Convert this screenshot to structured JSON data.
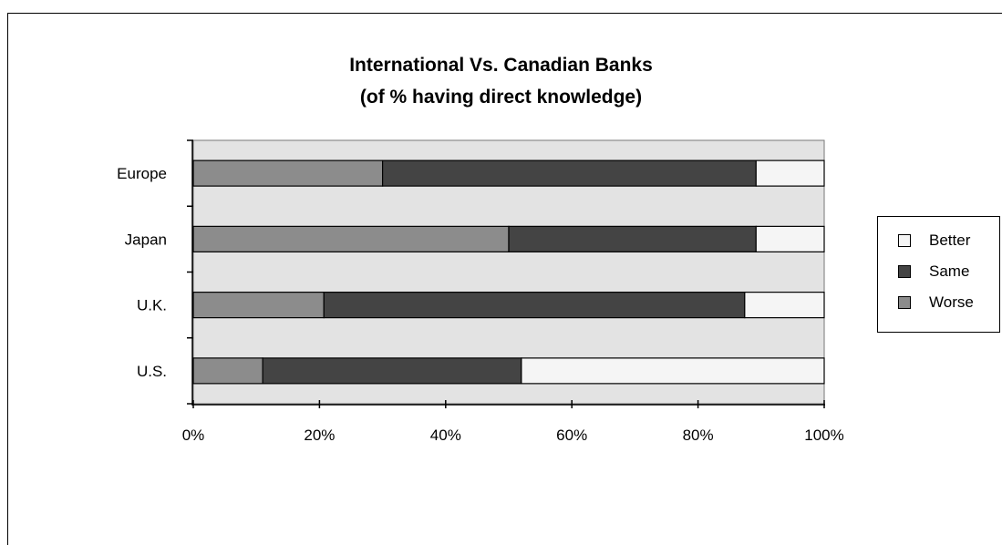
{
  "chart_data": {
    "type": "bar",
    "orientation": "horizontal",
    "stacked": true,
    "title": "International Vs. Canadian Banks",
    "subtitle": "(of % having direct knowledge)",
    "categories": [
      "Europe",
      "Japan",
      "U.K.",
      "U.S."
    ],
    "series": [
      {
        "name": "Worse",
        "color": "#8c8c8c",
        "values": [
          30,
          50,
          20.7,
          11
        ]
      },
      {
        "name": "Same",
        "color": "#444444",
        "values": [
          59.2,
          39.2,
          66.7,
          41
        ]
      },
      {
        "name": "Better",
        "color": "#f5f5f5",
        "values": [
          10.8,
          10.8,
          12.6,
          48
        ]
      }
    ],
    "x_ticks": [
      "0%",
      "20%",
      "40%",
      "60%",
      "80%",
      "100%"
    ],
    "xlim": [
      0,
      100
    ],
    "grid": false,
    "legend_position": "right",
    "legend_order": [
      "Better",
      "Same",
      "Worse"
    ],
    "plot_background": "#e3e3e3"
  }
}
